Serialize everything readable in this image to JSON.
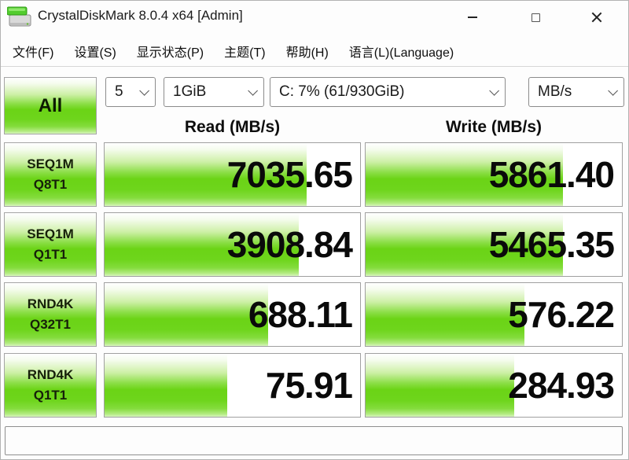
{
  "window": {
    "title": "CrystalDiskMark 8.0.4 x64 [Admin]"
  },
  "menu": {
    "items": [
      {
        "label": "文件(F)"
      },
      {
        "label": "设置(S)"
      },
      {
        "label": "显示状态(P)"
      },
      {
        "label": "主题(T)"
      },
      {
        "label": "帮助(H)"
      },
      {
        "label": "语言(L)(Language)"
      }
    ]
  },
  "toolbar": {
    "all_label": "All",
    "test_count": "5",
    "test_size": "1GiB",
    "drive": "C: 7% (61/930GiB)",
    "unit": "MB/s"
  },
  "headers": {
    "read": "Read (MB/s)",
    "write": "Write (MB/s)"
  },
  "results": {
    "rows": [
      {
        "label_line1": "SEQ1M",
        "label_line2": "Q8T1",
        "read": "7035.65",
        "write": "5861.40",
        "read_fill_pct": 79,
        "write_fill_pct": 77
      },
      {
        "label_line1": "SEQ1M",
        "label_line2": "Q1T1",
        "read": "3908.84",
        "write": "5465.35",
        "read_fill_pct": 76,
        "write_fill_pct": 77
      },
      {
        "label_line1": "RND4K",
        "label_line2": "Q32T1",
        "read": "688.11",
        "write": "576.22",
        "read_fill_pct": 64,
        "write_fill_pct": 62
      },
      {
        "label_line1": "RND4K",
        "label_line2": "Q1T1",
        "read": "75.91",
        "write": "284.93",
        "read_fill_pct": 48,
        "write_fill_pct": 58
      }
    ]
  },
  "status_bar": {
    "text": ""
  },
  "colors": {
    "bar_green": "#6ed51c",
    "bar_green_light": "#b6ec85",
    "border_gray": "#a0a0a0"
  }
}
